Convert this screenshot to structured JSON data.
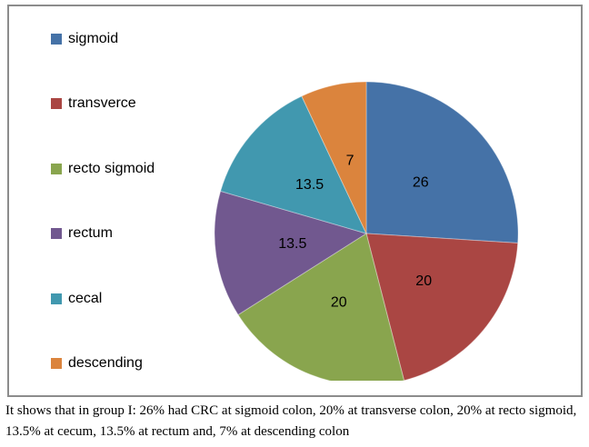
{
  "chart_data": {
    "type": "pie",
    "title": "",
    "start_angle_deg": 0,
    "direction": "clockwise",
    "legend_position": "left",
    "grid": false,
    "categories": [
      "sigmoid",
      "transverce",
      "recto sigmoid",
      "rectum",
      "cecal",
      "descending"
    ],
    "values": [
      26,
      20,
      20,
      13.5,
      13.5,
      7
    ],
    "slices": [
      {
        "label": "sigmoid",
        "value": 26,
        "display_value": "26",
        "color": "#4572A7"
      },
      {
        "label": "transverce",
        "value": 20,
        "display_value": "20",
        "color": "#AA4643"
      },
      {
        "label": "recto sigmoid",
        "value": 20,
        "display_value": "20",
        "color": "#89A54E"
      },
      {
        "label": "rectum",
        "value": 13.5,
        "display_value": "13.5",
        "color": "#71588F"
      },
      {
        "label": "cecal",
        "value": 13.5,
        "display_value": "13.5",
        "color": "#4198AF"
      },
      {
        "label": "descending",
        "value": 7,
        "display_value": "7",
        "color": "#DB843D"
      }
    ]
  },
  "caption": "It shows that in group I: 26% had CRC at sigmoid colon, 20% at transverse colon, 20% at recto sigmoid, 13.5% at cecum, 13.5% at rectum and, 7% at descending colon",
  "colors": {
    "frame_border": "#8C8C8C",
    "background": "#FFFFFF",
    "slice_label_text": "#000000",
    "legend_text": "#000000",
    "caption_text": "#000000"
  }
}
